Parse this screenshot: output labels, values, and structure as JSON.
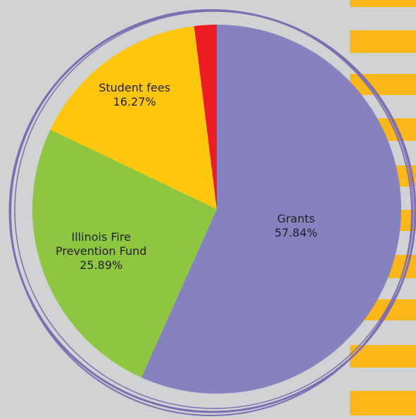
{
  "chart_data": {
    "type": "pie",
    "categories": [
      "Grants",
      "Illinois Fire Prevention Fund",
      "Student fees",
      null
    ],
    "values": [
      57.84,
      25.89,
      16.27,
      2
    ],
    "value_labels": [
      "57.84%",
      "25.89%",
      "16.27%",
      null
    ],
    "colors": [
      "#8681bf",
      "#8dc63f",
      "#ffc60b",
      "#ed1c24"
    ]
  }
}
